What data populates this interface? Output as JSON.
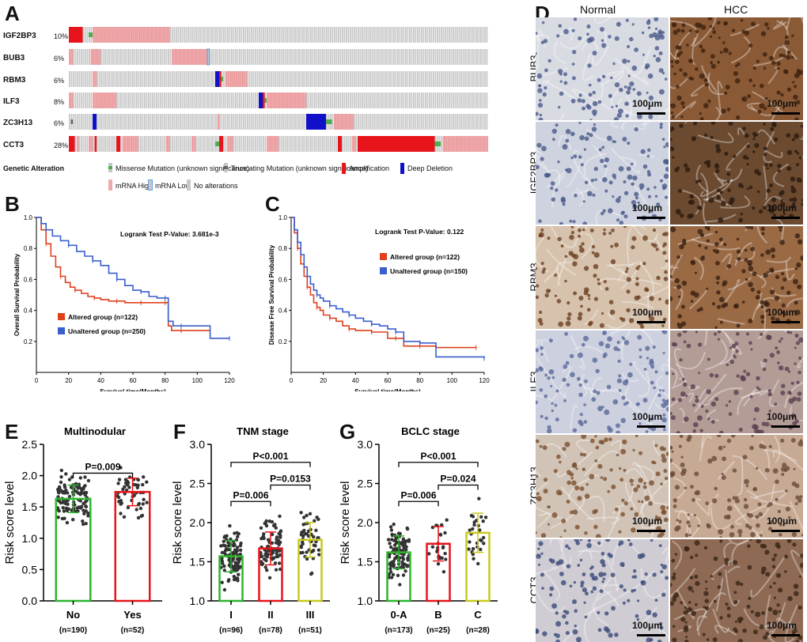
{
  "panel_labels": {
    "a": "A",
    "b": "B",
    "c": "C",
    "d": "D",
    "e": "E",
    "f": "F",
    "g": "G"
  },
  "panel_a": {
    "genes": [
      {
        "name": "IGF2BP3",
        "pct": "10%"
      },
      {
        "name": "BUB3",
        "pct": "6%"
      },
      {
        "name": "RBM3",
        "pct": "6%"
      },
      {
        "name": "ILF3",
        "pct": "8%"
      },
      {
        "name": "ZC3H13",
        "pct": "6%"
      },
      {
        "name": "CCT3",
        "pct": "28%"
      }
    ],
    "legend_title": "Genetic Alteration",
    "legend": {
      "missense": "Missense Mutation (unknown significance)",
      "truncating": "Truncating Mutation (unknown significance)",
      "amplification": "Amplification",
      "deep_deletion": "Deep Deletion",
      "mrna_high": "mRNA High",
      "mrna_low": "mRNA Low",
      "no_alt": "No alterations"
    },
    "colors": {
      "amp": "#e8141b",
      "deep": "#1010c8",
      "high": "#f0a9ab",
      "missense": "#4caf50",
      "none": "#c8c8c8",
      "truncating": "#666666"
    }
  },
  "panel_b": {
    "ylabel": "Overall Survival Probability",
    "xlabel": "Survival time(Months)",
    "logrank": "Logrank Test P-Value: 3.681e-3",
    "legend": [
      "Altered group (n=122)",
      "Unaltered group (n=250)"
    ],
    "xticks": [
      "0",
      "20",
      "40",
      "60",
      "80",
      "100",
      "120"
    ],
    "yticks": [
      "0.2",
      "0.4",
      "0.6",
      "0.8",
      "1.0"
    ]
  },
  "panel_c": {
    "ylabel": "Disease Free Survival Probability",
    "xlabel": "Survival time(Months)",
    "logrank": "Logrank Test P-Value: 0.122",
    "legend": [
      "Altered group (n=122)",
      "Unaltered group (n=150)"
    ],
    "xticks": [
      "0",
      "20",
      "40",
      "60",
      "80",
      "100",
      "120"
    ],
    "yticks": [
      "0.2",
      "0.4",
      "0.6",
      "0.8",
      "1.0"
    ]
  },
  "panel_d": {
    "col_headers": [
      "Normal",
      "HCC"
    ],
    "rows": [
      "BUB3",
      "IGF2BP3",
      "RBM3",
      "ILF3",
      "ZC3H13",
      "CCT3"
    ],
    "scalebar": "100μm"
  },
  "chart_data": [
    {
      "type": "line",
      "title": "",
      "xlabel": "Survival time(Months)",
      "ylabel": "Overall Survival Probability",
      "xlim": [
        0,
        120
      ],
      "ylim": [
        0,
        1.0
      ],
      "annotations": [
        "Logrank Test P-Value: 3.681e-3"
      ],
      "series": [
        {
          "name": "Altered group (n=122)",
          "color": "#e0401c",
          "x": [
            0,
            3,
            6,
            9,
            12,
            15,
            18,
            21,
            24,
            28,
            32,
            36,
            40,
            45,
            50,
            55,
            60,
            65,
            70,
            75,
            80,
            82,
            84,
            90,
            100,
            108
          ],
          "y": [
            1.0,
            0.92,
            0.83,
            0.75,
            0.68,
            0.62,
            0.58,
            0.55,
            0.53,
            0.51,
            0.49,
            0.48,
            0.47,
            0.46,
            0.46,
            0.45,
            0.45,
            0.45,
            0.45,
            0.45,
            0.45,
            0.3,
            0.27,
            0.27,
            0.27,
            0.27
          ]
        },
        {
          "name": "Unaltered group (n=250)",
          "color": "#3a5fcd",
          "x": [
            0,
            3,
            6,
            10,
            15,
            20,
            25,
            30,
            35,
            40,
            45,
            50,
            55,
            60,
            65,
            70,
            75,
            80,
            82,
            85,
            90,
            100,
            108,
            120
          ],
          "y": [
            1.0,
            0.96,
            0.92,
            0.88,
            0.85,
            0.82,
            0.78,
            0.75,
            0.72,
            0.69,
            0.64,
            0.6,
            0.56,
            0.53,
            0.52,
            0.49,
            0.48,
            0.48,
            0.33,
            0.3,
            0.3,
            0.3,
            0.22,
            0.22
          ]
        }
      ]
    },
    {
      "type": "line",
      "title": "",
      "xlabel": "Survival time(Months)",
      "ylabel": "Disease Free Survival Probability",
      "xlim": [
        0,
        120
      ],
      "ylim": [
        0,
        1.0
      ],
      "annotations": [
        "Logrank Test P-Value: 0.122"
      ],
      "series": [
        {
          "name": "Altered group (n=122)",
          "color": "#e0401c",
          "x": [
            0,
            2,
            4,
            6,
            8,
            10,
            12,
            14,
            16,
            18,
            20,
            24,
            28,
            32,
            36,
            40,
            45,
            50,
            55,
            60,
            65,
            70,
            75,
            80,
            90,
            100,
            115
          ],
          "y": [
            1.0,
            0.9,
            0.8,
            0.7,
            0.62,
            0.55,
            0.5,
            0.45,
            0.42,
            0.4,
            0.37,
            0.35,
            0.33,
            0.3,
            0.28,
            0.27,
            0.27,
            0.26,
            0.26,
            0.22,
            0.22,
            0.17,
            0.17,
            0.17,
            0.16,
            0.16,
            0.16
          ]
        },
        {
          "name": "Unaltered group (n=150)",
          "color": "#3a5fcd",
          "x": [
            0,
            2,
            4,
            6,
            8,
            10,
            12,
            14,
            16,
            18,
            20,
            24,
            28,
            32,
            36,
            40,
            45,
            50,
            55,
            60,
            65,
            70,
            75,
            80,
            90,
            100,
            120
          ],
          "y": [
            1.0,
            0.92,
            0.84,
            0.76,
            0.68,
            0.62,
            0.57,
            0.53,
            0.5,
            0.48,
            0.46,
            0.43,
            0.41,
            0.39,
            0.37,
            0.35,
            0.33,
            0.31,
            0.3,
            0.28,
            0.26,
            0.2,
            0.2,
            0.19,
            0.1,
            0.1,
            0.09
          ]
        }
      ]
    },
    {
      "type": "bar",
      "title": "Multinodular",
      "ylabel": "Risk score level",
      "ylim": [
        0,
        2.5
      ],
      "yticks": [
        "0.0",
        "0.5",
        "1.0",
        "1.5",
        "2.0",
        "2.5"
      ],
      "categories": [
        "No",
        "Yes"
      ],
      "sublabels": [
        "(n=190)",
        "(n=52)"
      ],
      "values": [
        1.63,
        1.74
      ],
      "colors": [
        "#2db52d",
        "#e8141b"
      ],
      "sd": [
        0.22,
        0.22
      ],
      "annotations": [
        "P=0.009"
      ]
    },
    {
      "type": "bar",
      "title": "TNM stage",
      "ylabel": "Risk score level",
      "ylim": [
        1.0,
        3.0
      ],
      "yticks": [
        "1.0",
        "1.5",
        "2.0",
        "2.5",
        "3.0"
      ],
      "categories": [
        "I",
        "II",
        "III"
      ],
      "sublabels": [
        "(n=96)",
        "(n=78)",
        "(n=51)"
      ],
      "values": [
        1.57,
        1.67,
        1.78
      ],
      "colors": [
        "#2db52d",
        "#e8141b",
        "#c8c820"
      ],
      "sd": [
        0.2,
        0.21,
        0.22
      ],
      "annotations": [
        "P=0.006",
        "P=0.0153",
        "P<0.001"
      ]
    },
    {
      "type": "bar",
      "title": "BCLC stage",
      "ylabel": "Risk score level",
      "ylim": [
        1.0,
        3.0
      ],
      "yticks": [
        "1.0",
        "1.5",
        "2.0",
        "2.5",
        "3.0"
      ],
      "categories": [
        "0-A",
        "B",
        "C"
      ],
      "sublabels": [
        "(n=173)",
        "(n=25)",
        "(n=28)"
      ],
      "values": [
        1.62,
        1.73,
        1.87
      ],
      "colors": [
        "#2db52d",
        "#e8141b",
        "#c8c820"
      ],
      "sd": [
        0.21,
        0.22,
        0.25
      ],
      "annotations": [
        "P=0.006",
        "P=0.024",
        "P<0.001"
      ]
    }
  ]
}
